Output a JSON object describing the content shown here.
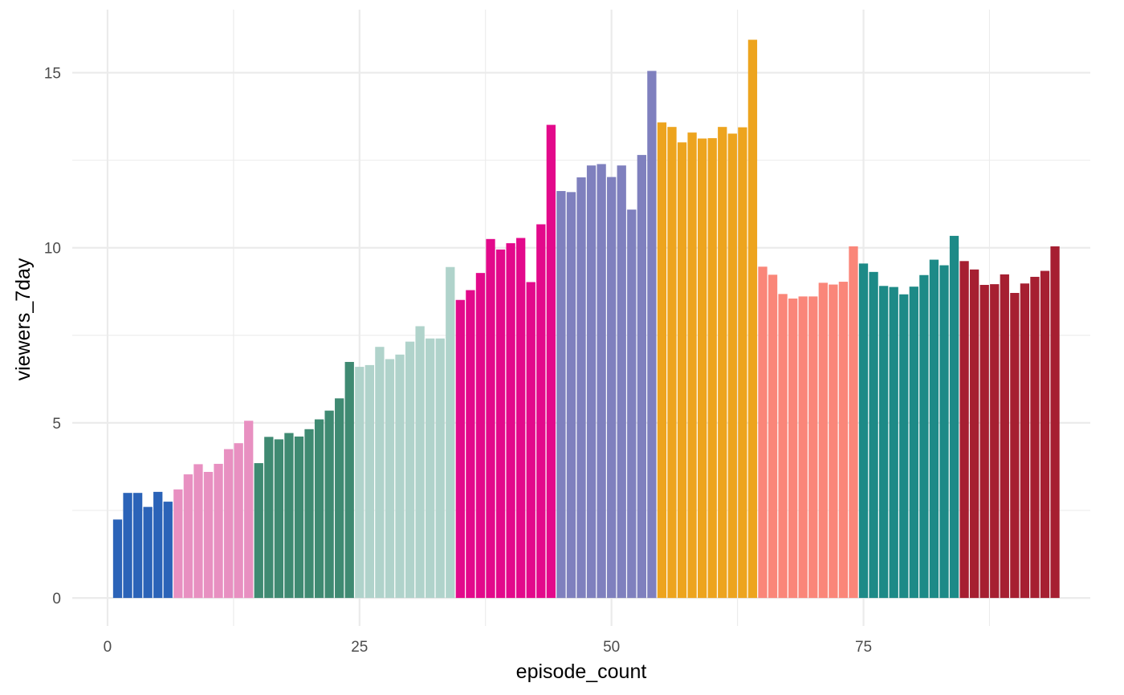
{
  "chart_data": {
    "type": "bar",
    "xlabel": "episode_count",
    "ylabel": "viewers_7day",
    "xlim": [
      -3.5,
      97.5
    ],
    "ylim": [
      -0.8,
      16.8
    ],
    "x_ticks": [
      0,
      25,
      50,
      75
    ],
    "x_tick_labels": [
      "0",
      "25",
      "50",
      "75"
    ],
    "y_ticks": [
      0,
      5,
      10,
      15
    ],
    "y_tick_labels": [
      "0",
      "5",
      "10",
      "15"
    ],
    "grid": true,
    "legend": "none",
    "series": [
      {
        "color": "#2b63b8",
        "x": [
          1,
          2,
          3,
          4,
          5,
          6
        ],
        "values": [
          2.24,
          3.0,
          3.0,
          2.6,
          3.03,
          2.75
        ]
      },
      {
        "color": "#e890c1",
        "x": [
          7,
          8,
          9,
          10,
          11,
          12,
          13,
          14
        ],
        "values": [
          3.1,
          3.53,
          3.82,
          3.6,
          3.83,
          4.25,
          4.42,
          5.06
        ]
      },
      {
        "color": "#3f8a72",
        "x": [
          15,
          16,
          17,
          18,
          19,
          20,
          21,
          22,
          23,
          24
        ],
        "values": [
          3.85,
          4.6,
          4.53,
          4.71,
          4.61,
          4.82,
          5.1,
          5.35,
          5.7,
          6.74
        ]
      },
      {
        "color": "#b0d3cb",
        "x": [
          25,
          26,
          27,
          28,
          29,
          30,
          31,
          32,
          33,
          34
        ],
        "values": [
          6.6,
          6.65,
          7.17,
          6.82,
          6.95,
          7.32,
          7.76,
          7.41,
          7.41,
          9.45
        ]
      },
      {
        "color": "#e3098b",
        "x": [
          35,
          36,
          37,
          38,
          39,
          40,
          41,
          42,
          43,
          44
        ],
        "values": [
          8.51,
          8.79,
          9.28,
          10.25,
          9.95,
          10.13,
          10.28,
          9.02,
          10.67,
          13.51
        ]
      },
      {
        "color": "#7f80be",
        "x": [
          45,
          46,
          47,
          48,
          49,
          50,
          51,
          52,
          53,
          54
        ],
        "values": [
          11.62,
          11.59,
          12.01,
          12.35,
          12.39,
          12.02,
          12.35,
          11.09,
          12.65,
          15.05
        ]
      },
      {
        "color": "#eda41e",
        "x": [
          55,
          56,
          57,
          58,
          59,
          60,
          61,
          62,
          63,
          64
        ],
        "values": [
          13.58,
          13.45,
          13.01,
          13.29,
          13.12,
          13.13,
          13.45,
          13.26,
          13.44,
          15.94
        ]
      },
      {
        "color": "#fa8679",
        "x": [
          65,
          66,
          67,
          68,
          69,
          70,
          71,
          72,
          73,
          74
        ],
        "values": [
          9.46,
          9.23,
          8.68,
          8.55,
          8.61,
          8.61,
          9.0,
          8.95,
          9.03,
          10.04
        ]
      },
      {
        "color": "#1d8a87",
        "x": [
          75,
          76,
          77,
          78,
          79,
          80,
          81,
          82,
          83,
          84
        ],
        "values": [
          9.55,
          9.31,
          8.91,
          8.88,
          8.67,
          8.89,
          9.22,
          9.66,
          9.5,
          10.34
        ]
      },
      {
        "color": "#a61f31",
        "x": [
          85,
          86,
          87,
          88,
          89,
          90,
          91,
          92,
          93,
          94
        ],
        "values": [
          9.62,
          9.38,
          8.94,
          8.96,
          9.24,
          8.71,
          8.98,
          9.17,
          9.34,
          10.04
        ]
      }
    ]
  }
}
